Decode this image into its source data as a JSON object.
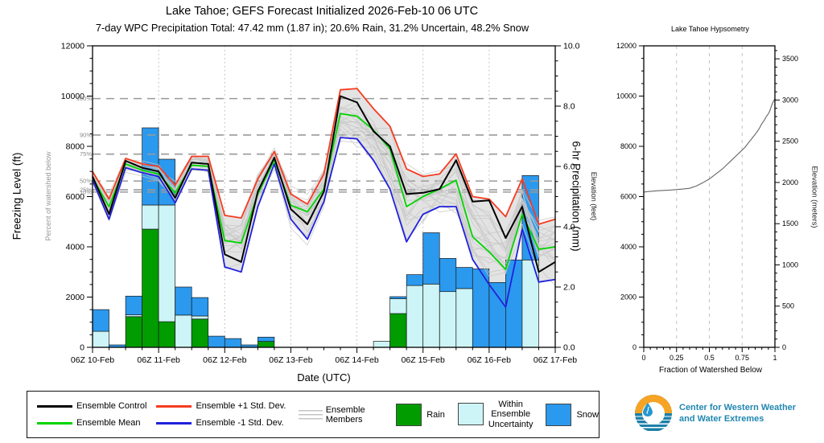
{
  "title": "Lake Tahoe; GEFS Forecast Initialized 2026-Feb-10 06 UTC",
  "subtitle": "7-day WPC Precipitation Total: 47.42 mm (1.87 in);  20.6% Rain, 31.2% Uncertain, 48.2% Snow",
  "chart_data": [
    {
      "type": "line+bar",
      "title": "Lake Tahoe; GEFS Forecast Initialized 2026-Feb-10 06 UTC",
      "xlabel": "Date (UTC)",
      "x_tick_labels": [
        "06Z 10-Feb",
        "06Z 11-Feb",
        "06Z 12-Feb",
        "06Z 13-Feb",
        "06Z 14-Feb",
        "06Z 15-Feb",
        "06Z 16-Feb",
        "06Z 17-Feb"
      ],
      "y_left": {
        "label": "Freezing Level (ft)",
        "secondary_label": "Percent of watershed below",
        "min": 0,
        "max": 12000,
        "tick_labels": [
          "0",
          "2000",
          "4000",
          "6000",
          "8000",
          "10000",
          "12000"
        ],
        "minor_step": 500
      },
      "y_right": {
        "label": "6-hr Precipitation (mm)",
        "min": 0,
        "max": 10,
        "tick_labels": [
          "0.0",
          "2.0",
          "4.0",
          "6.0",
          "8.0",
          "10.0"
        ],
        "minor_step": 0.5
      },
      "points_per_series": 29,
      "step_hours": 6,
      "series": [
        {
          "name": "Ensemble Control",
          "color": "#000000",
          "width": 2.0,
          "values": [
            6800,
            5300,
            7420,
            7150,
            7000,
            5950,
            7350,
            7300,
            3700,
            3400,
            6200,
            7550,
            5500,
            4900,
            6200,
            10000,
            9750,
            8600,
            8000,
            6100,
            6150,
            6300,
            7450,
            5800,
            5850,
            4350,
            5600,
            3000,
            3400
          ]
        },
        {
          "name": "Ensemble Mean",
          "color": "#00d400",
          "width": 1.8,
          "values": [
            6750,
            5600,
            7300,
            7050,
            6900,
            6150,
            7250,
            7200,
            4250,
            4150,
            6100,
            7450,
            5650,
            5400,
            6300,
            9300,
            9200,
            8650,
            7900,
            5600,
            6000,
            6300,
            6650,
            4400,
            3800,
            3100,
            5300,
            3900,
            4000
          ]
        },
        {
          "name": "Ensemble +1 Std. Dev.",
          "color": "#f63b20",
          "width": 1.8,
          "values": [
            7000,
            5900,
            7520,
            7300,
            7200,
            6450,
            7600,
            7600,
            5250,
            5150,
            6700,
            7800,
            6100,
            5700,
            6900,
            10250,
            10300,
            9500,
            8800,
            7100,
            6800,
            6900,
            7700,
            6000,
            5900,
            5200,
            6700,
            4900,
            5100
          ]
        },
        {
          "name": "Ensemble -1 Std. Dev.",
          "color": "#2020dd",
          "width": 1.8,
          "values": [
            6650,
            5100,
            7150,
            6950,
            6800,
            5750,
            7100,
            7050,
            3200,
            3000,
            5600,
            7300,
            5100,
            4300,
            5800,
            8350,
            8300,
            7450,
            6300,
            4200,
            5300,
            5600,
            5600,
            3500,
            2500,
            1600,
            4700,
            2600,
            2700
          ]
        }
      ],
      "envelope": {
        "name": "Ensemble Members",
        "fill": "#dcdcdc",
        "member_color": "#c6c6c6",
        "member_count": 20,
        "upper": [
          7300,
          6500,
          7800,
          7700,
          7600,
          7000,
          8000,
          8100,
          6400,
          6600,
          7900,
          8500,
          7200,
          7200,
          8200,
          10700,
          10900,
          10300,
          9600,
          8500,
          8200,
          8100,
          8300,
          7500,
          7300,
          6500,
          7500,
          6200,
          6500
        ],
        "lower": [
          6300,
          4600,
          6700,
          6500,
          6300,
          5100,
          6700,
          6600,
          2200,
          2000,
          4800,
          6600,
          4200,
          3200,
          4600,
          7300,
          6800,
          6100,
          4800,
          3000,
          3800,
          4300,
          4600,
          2600,
          1400,
          700,
          3600,
          1500,
          1200
        ]
      },
      "watershed_lines": [
        {
          "label": "100%",
          "ft": 9900
        },
        {
          "label": "90%",
          "ft": 8450
        },
        {
          "label": "75%",
          "ft": 7690
        },
        {
          "label": "50%",
          "ft": 6620
        },
        {
          "label": "25%",
          "ft": 6270
        },
        {
          "label": "10%",
          "ft": 6180
        }
      ],
      "bars": {
        "unit": "mm per 6-hr",
        "stack_order": [
          "rain",
          "uncertain",
          "snow"
        ],
        "colors": {
          "rain": "#009c00",
          "uncertain": "#cdf5f7",
          "snow": "#2b99ee"
        },
        "values": [
          [
            0,
            0.53,
            0.72
          ],
          [
            0,
            0,
            0.08
          ],
          [
            1.02,
            0.06,
            0.62
          ],
          [
            3.92,
            0.8,
            2.56
          ],
          [
            0.85,
            3.87,
            1.52
          ],
          [
            0,
            1.07,
            0.93
          ],
          [
            0.94,
            0.1,
            0.61
          ],
          [
            0,
            0,
            0.37
          ],
          [
            0,
            0,
            0.29
          ],
          [
            0,
            0,
            0.08
          ],
          [
            0.2,
            0,
            0.14
          ],
          [
            0,
            0,
            0
          ],
          [
            0,
            0,
            0
          ],
          [
            0,
            0,
            0
          ],
          [
            0,
            0,
            0
          ],
          [
            0,
            0,
            0
          ],
          [
            0,
            0,
            0
          ],
          [
            0,
            0.2,
            0
          ],
          [
            1.12,
            0.49,
            0.07
          ],
          [
            0,
            2.05,
            0.36
          ],
          [
            0,
            2.1,
            1.7
          ],
          [
            0,
            1.85,
            1.1
          ],
          [
            0,
            1.95,
            0.7
          ],
          [
            0,
            0,
            2.6
          ],
          [
            0,
            0,
            2.15
          ],
          [
            0,
            0,
            2.9
          ],
          [
            0,
            2.9,
            2.8
          ],
          [
            0,
            0,
            0
          ]
        ]
      },
      "grid": {
        "vertical_dotted_at_days": true
      }
    },
    {
      "type": "line",
      "title": "Lake Tahoe Hypsometry",
      "xlabel": "Fraction of Watershed Below",
      "x_tick_labels": [
        "0",
        "0.25",
        "0.5",
        "0.75",
        "1"
      ],
      "x_ticks": [
        0,
        0.25,
        0.5,
        0.75,
        1
      ],
      "y_left": {
        "label": "Elevation (feet)",
        "min": 0,
        "max": 12000,
        "tick_labels": [
          "0",
          "2000",
          "4000",
          "6000",
          "8000",
          "10000",
          "12000"
        ],
        "minor_step": 500
      },
      "y_right": {
        "label": "Elevation (meters)",
        "tick_labels": [
          "0",
          "500",
          "1000",
          "1500",
          "2000",
          "2500",
          "3000",
          "3500"
        ],
        "tick_values_m": [
          0,
          500,
          1000,
          1500,
          2000,
          2500,
          3000,
          3500
        ],
        "minor_step_m": 100
      },
      "line_color": "#666666",
      "points": [
        [
          0,
          6180
        ],
        [
          0.03,
          6200
        ],
        [
          0.1,
          6230
        ],
        [
          0.2,
          6260
        ],
        [
          0.3,
          6300
        ],
        [
          0.35,
          6330
        ],
        [
          0.4,
          6420
        ],
        [
          0.45,
          6550
        ],
        [
          0.5,
          6700
        ],
        [
          0.55,
          6900
        ],
        [
          0.6,
          7100
        ],
        [
          0.63,
          7250
        ],
        [
          0.67,
          7450
        ],
        [
          0.7,
          7600
        ],
        [
          0.73,
          7750
        ],
        [
          0.77,
          7950
        ],
        [
          0.8,
          8150
        ],
        [
          0.83,
          8350
        ],
        [
          0.86,
          8550
        ],
        [
          0.88,
          8700
        ],
        [
          0.9,
          8900
        ],
        [
          0.92,
          9050
        ],
        [
          0.93,
          9150
        ],
        [
          0.95,
          9300
        ],
        [
          0.96,
          9400
        ],
        [
          0.97,
          9550
        ],
        [
          0.98,
          9700
        ],
        [
          0.99,
          9800
        ],
        [
          1.0,
          9900
        ]
      ],
      "grid": {
        "vertical_dashed_at": [
          0.25,
          0.5,
          0.75
        ]
      }
    }
  ],
  "legend": {
    "items": [
      {
        "kind": "line",
        "color": "#000000",
        "label": "Ensemble Control"
      },
      {
        "kind": "line",
        "color": "#00d400",
        "label": "Ensemble Mean"
      },
      {
        "kind": "line",
        "color": "#f63b20",
        "label": "Ensemble +1 Std. Dev."
      },
      {
        "kind": "line",
        "color": "#2020dd",
        "label": "Ensemble -1 Std. Dev."
      },
      {
        "kind": "multiline",
        "color": "#c6c6c6",
        "label": "Ensemble Members"
      },
      {
        "kind": "patch",
        "color": "#009c00",
        "label": "Rain"
      },
      {
        "kind": "patch",
        "color": "#cdf5f7",
        "label_lines": [
          "Within",
          "Ensemble",
          "Uncertainty"
        ],
        "label": "Within Ensemble Uncertainty"
      },
      {
        "kind": "patch",
        "color": "#2b99ee",
        "label": "Snow"
      }
    ]
  },
  "logo": {
    "line1": "Center for Western Weather",
    "line2": "and Water Extremes",
    "orange": "#f5a426",
    "teal": "#1d7fa8",
    "text_color": "#2187b0"
  }
}
